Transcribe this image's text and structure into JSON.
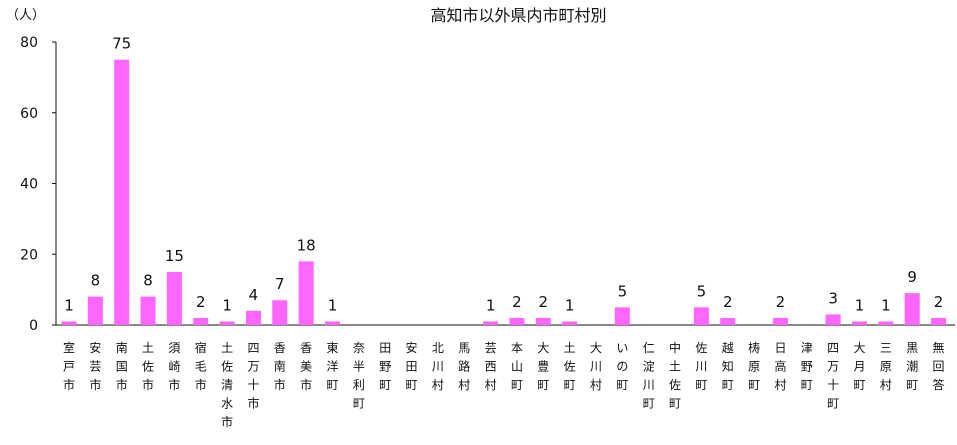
{
  "chart_data": {
    "type": "bar",
    "title": "高知市以外県内市町村別",
    "ylabel": "（人）",
    "ylim": [
      0,
      80
    ],
    "yticks": [
      0,
      20,
      40,
      60,
      80
    ],
    "grid": false,
    "bar_color": "#ff66ff",
    "categories": [
      "室戸市",
      "安芸市",
      "南国市",
      "土佐市",
      "須崎市",
      "宿毛市",
      "土佐清水市",
      "四万十市",
      "香南市",
      "香美市",
      "東洋町",
      "奈半利町",
      "田野町",
      "安田町",
      "北川村",
      "馬路村",
      "芸西村",
      "本山町",
      "大豊町",
      "土佐町",
      "大川村",
      "いの町",
      "仁淀川町",
      "中土佐町",
      "佐川町",
      "越知町",
      "梼原町",
      "日高村",
      "津野町",
      "四万十町",
      "大月町",
      "三原村",
      "黒潮町",
      "無回答"
    ],
    "values": [
      1,
      8,
      75,
      8,
      15,
      2,
      1,
      4,
      7,
      18,
      1,
      0,
      0,
      0,
      0,
      0,
      1,
      2,
      2,
      1,
      0,
      5,
      0,
      0,
      5,
      2,
      0,
      2,
      0,
      3,
      1,
      1,
      9,
      2
    ],
    "value_labels": [
      "1",
      "8",
      "75",
      "8",
      "15",
      "2",
      "1",
      "4",
      "7",
      "18",
      "1",
      "",
      "",
      "",
      "",
      "",
      "1",
      "2",
      "2",
      "1",
      "",
      "5",
      "",
      "",
      "5",
      "2",
      "",
      "2",
      "",
      "3",
      "1",
      "1",
      "9",
      "2"
    ]
  }
}
